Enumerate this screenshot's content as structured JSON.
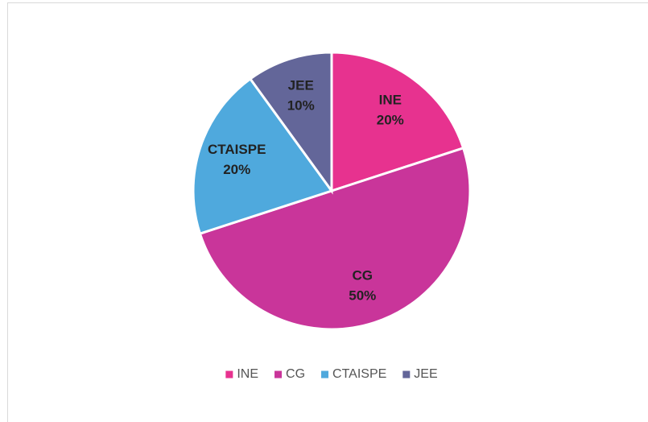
{
  "chart_data": {
    "type": "pie",
    "categories": [
      "INE",
      "CG",
      "CTAISPE",
      "JEE"
    ],
    "values": [
      20,
      50,
      20,
      10
    ],
    "value_labels": [
      "20%",
      "50%",
      "20%",
      "10%"
    ],
    "colors": [
      "#e7328f",
      "#c9359a",
      "#4fa9dd",
      "#636699"
    ],
    "legend": "bottom"
  }
}
